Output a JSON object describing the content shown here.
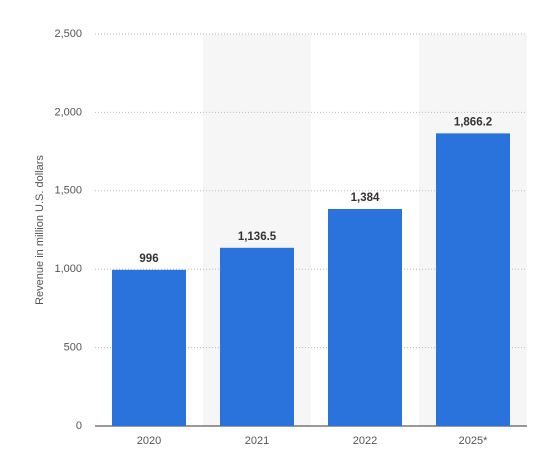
{
  "chart_data": {
    "type": "bar",
    "y_label": "Revenue in million U.S. dollars",
    "categories": [
      "2020",
      "2021",
      "2022",
      "2025*"
    ],
    "values": [
      996,
      1136.5,
      1384,
      1866.2
    ],
    "value_labels": [
      "996",
      "1,136.5",
      "1,384",
      "1,866.2"
    ],
    "color": "#2a73dc",
    "ylim": [
      0,
      2500
    ],
    "yticks": [
      0,
      500,
      {
        "value": 1000,
        "label": "1,000"
      },
      {
        "value": 1500,
        "label": "1,500"
      },
      {
        "value": 2000,
        "label": "2,000"
      },
      {
        "value": 2500,
        "label": "2,500"
      }
    ],
    "grid": true
  }
}
